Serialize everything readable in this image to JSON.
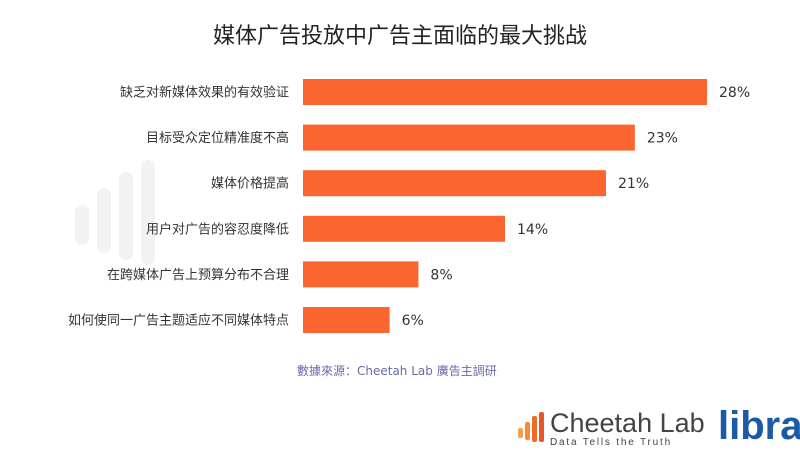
{
  "chart_data": {
    "type": "bar",
    "orientation": "horizontal",
    "title": "媒体广告投放中广告主面临的最大挑战",
    "categories": [
      "缺乏对新媒体效果的有效验证",
      "目标受众定位精准度不高",
      "媒体价格提高",
      "用户对广告的容忍度降低",
      "在跨媒体广告上预算分布不合理",
      "如何使同一广告主题适应不同媒体特点"
    ],
    "values": [
      28,
      23,
      21,
      14,
      8,
      6
    ],
    "data_labels": [
      "28%",
      "23%",
      "21%",
      "14%",
      "8%",
      "6%"
    ],
    "unit": "%",
    "xlim": [
      0,
      28
    ],
    "grid": false,
    "bar_color": "#fb6530"
  },
  "source": "數據來源：Cheetah Lab 廣告主調研",
  "watermark": {
    "name": "Cheetah Lab",
    "tagline": "Data Tells the Truth"
  },
  "logos": {
    "cheetah": "Cheetah Lab",
    "cheetah_tagline": "Data Tells the Truth",
    "libra": "libra"
  }
}
